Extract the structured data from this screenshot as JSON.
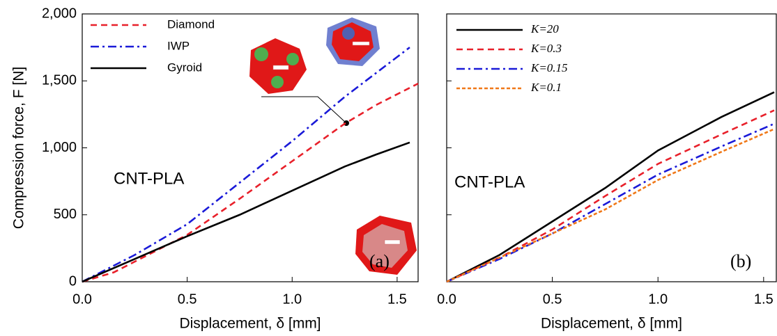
{
  "chart_data": [
    {
      "type": "line",
      "ylabel": "Compression force, F [N]",
      "xlabel": "Displacement, δ  [mm]",
      "annotations": [
        "CNT-PLA",
        "(a)"
      ],
      "legend": "upper left",
      "xlim": [
        0,
        1.6
      ],
      "ylim": [
        0,
        2000
      ],
      "xticks": [
        {
          "value": 0,
          "label": "0.0"
        },
        0.5,
        {
          "value": 1,
          "label": "1.0"
        },
        1.5
      ],
      "yticks": [
        0,
        500,
        {
          "value": 1000,
          "label": "1,000"
        },
        {
          "value": 1500,
          "label": "1,500"
        },
        {
          "value": 2000,
          "label": "2,000"
        }
      ],
      "series": [
        {
          "name": "Diamond",
          "color": "#e8202a",
          "linestyle": "dashed",
          "x": [
            0,
            0.15,
            0.25,
            0.5,
            0.75,
            1.0,
            1.25,
            1.4,
            1.6
          ],
          "values": [
            0,
            70,
            150,
            350,
            620,
            900,
            1180,
            1320,
            1480
          ]
        },
        {
          "name": "IWP",
          "color": "#1a1ad8",
          "linestyle": "dashdot",
          "x": [
            0,
            0.25,
            0.5,
            0.75,
            1.0,
            1.25,
            1.56
          ],
          "values": [
            0,
            200,
            430,
            740,
            1050,
            1380,
            1750
          ]
        },
        {
          "name": "Gyroid",
          "color": "#000000",
          "linestyle": "solid",
          "x": [
            0,
            0.25,
            0.5,
            0.75,
            1.0,
            1.25,
            1.4,
            1.56
          ],
          "values": [
            0,
            170,
            340,
            500,
            680,
            860,
            950,
            1040
          ]
        }
      ]
    },
    {
      "type": "line",
      "xlabel": "Displacement, δ  [mm]",
      "annotations": [
        "CNT-PLA",
        "(b)"
      ],
      "legend": "upper left",
      "xlim": [
        0,
        1.56
      ],
      "ylim": [
        0,
        2000
      ],
      "xticks": [
        {
          "value": 0,
          "label": "0.0"
        },
        0.5,
        {
          "value": 1,
          "label": "1.0"
        },
        1.5
      ],
      "yticks": [
        0,
        500,
        1000,
        1500,
        2000
      ],
      "series": [
        {
          "name": "K=20",
          "color": "#000000",
          "linestyle": "solid",
          "x": [
            0,
            0.25,
            0.5,
            0.75,
            1.0,
            1.3,
            1.55
          ],
          "values": [
            0,
            200,
            450,
            700,
            980,
            1230,
            1415
          ]
        },
        {
          "name": "K=0.3",
          "color": "#e8202a",
          "linestyle": "dashed",
          "x": [
            0,
            0.25,
            0.5,
            0.75,
            1.0,
            1.3,
            1.55
          ],
          "values": [
            0,
            180,
            390,
            640,
            880,
            1100,
            1280
          ]
        },
        {
          "name": "K=0.15",
          "color": "#1a1ad8",
          "linestyle": "dashdot",
          "x": [
            0,
            0.25,
            0.5,
            0.75,
            1.0,
            1.3,
            1.55
          ],
          "values": [
            0,
            170,
            360,
            580,
            800,
            1010,
            1180
          ]
        },
        {
          "name": "K=0.1",
          "color": "#f07818",
          "linestyle": "dotted",
          "x": [
            0,
            0.25,
            0.5,
            0.75,
            1.0,
            1.3,
            1.55
          ],
          "values": [
            0,
            180,
            360,
            540,
            760,
            970,
            1140
          ]
        }
      ]
    }
  ]
}
